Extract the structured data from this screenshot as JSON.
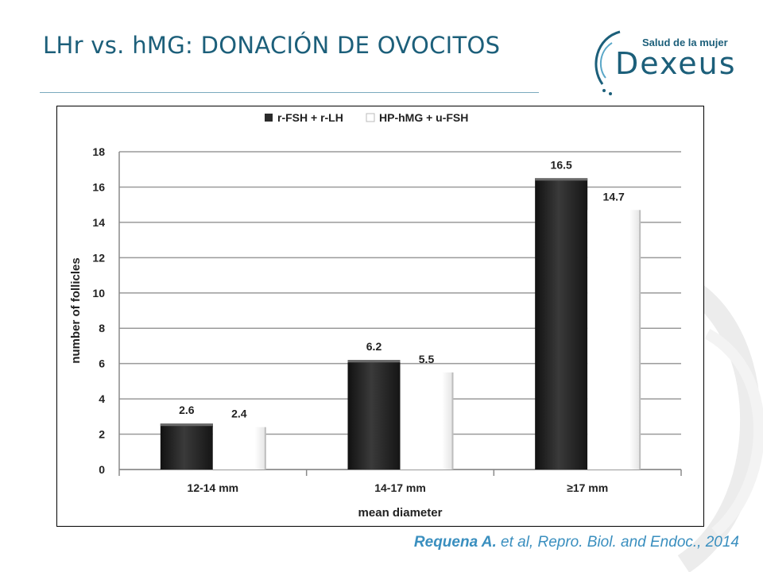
{
  "slide": {
    "title": "LHr vs. hMG: DONACIÓN DE OVOCITOS",
    "citation_author": "Requena A.",
    "citation_rest": " et al, Repro. Biol. and Endoc., 2014"
  },
  "logo": {
    "tagline": "Salud de la mujer",
    "wordmark": "Dexeus",
    "color": "#1c5f7a"
  },
  "chart_data": {
    "type": "bar",
    "title": "",
    "xlabel": "mean diameter",
    "ylabel": "number of follicles",
    "categories": [
      "12-14 mm",
      "14-17 mm",
      "≥17 mm"
    ],
    "series": [
      {
        "name": "r-FSH + r-LH",
        "values": [
          2.6,
          6.2,
          16.5
        ],
        "color": "#2b2b2b"
      },
      {
        "name": "HP-hMG + u-FSH",
        "values": [
          2.4,
          5.5,
          14.7
        ],
        "color": "#ffffff"
      }
    ],
    "ylim": [
      0,
      18
    ],
    "yticks": [
      0,
      2,
      4,
      6,
      8,
      10,
      12,
      14,
      16,
      18
    ],
    "grid": true,
    "legend": "top-center",
    "data_labels": true
  }
}
